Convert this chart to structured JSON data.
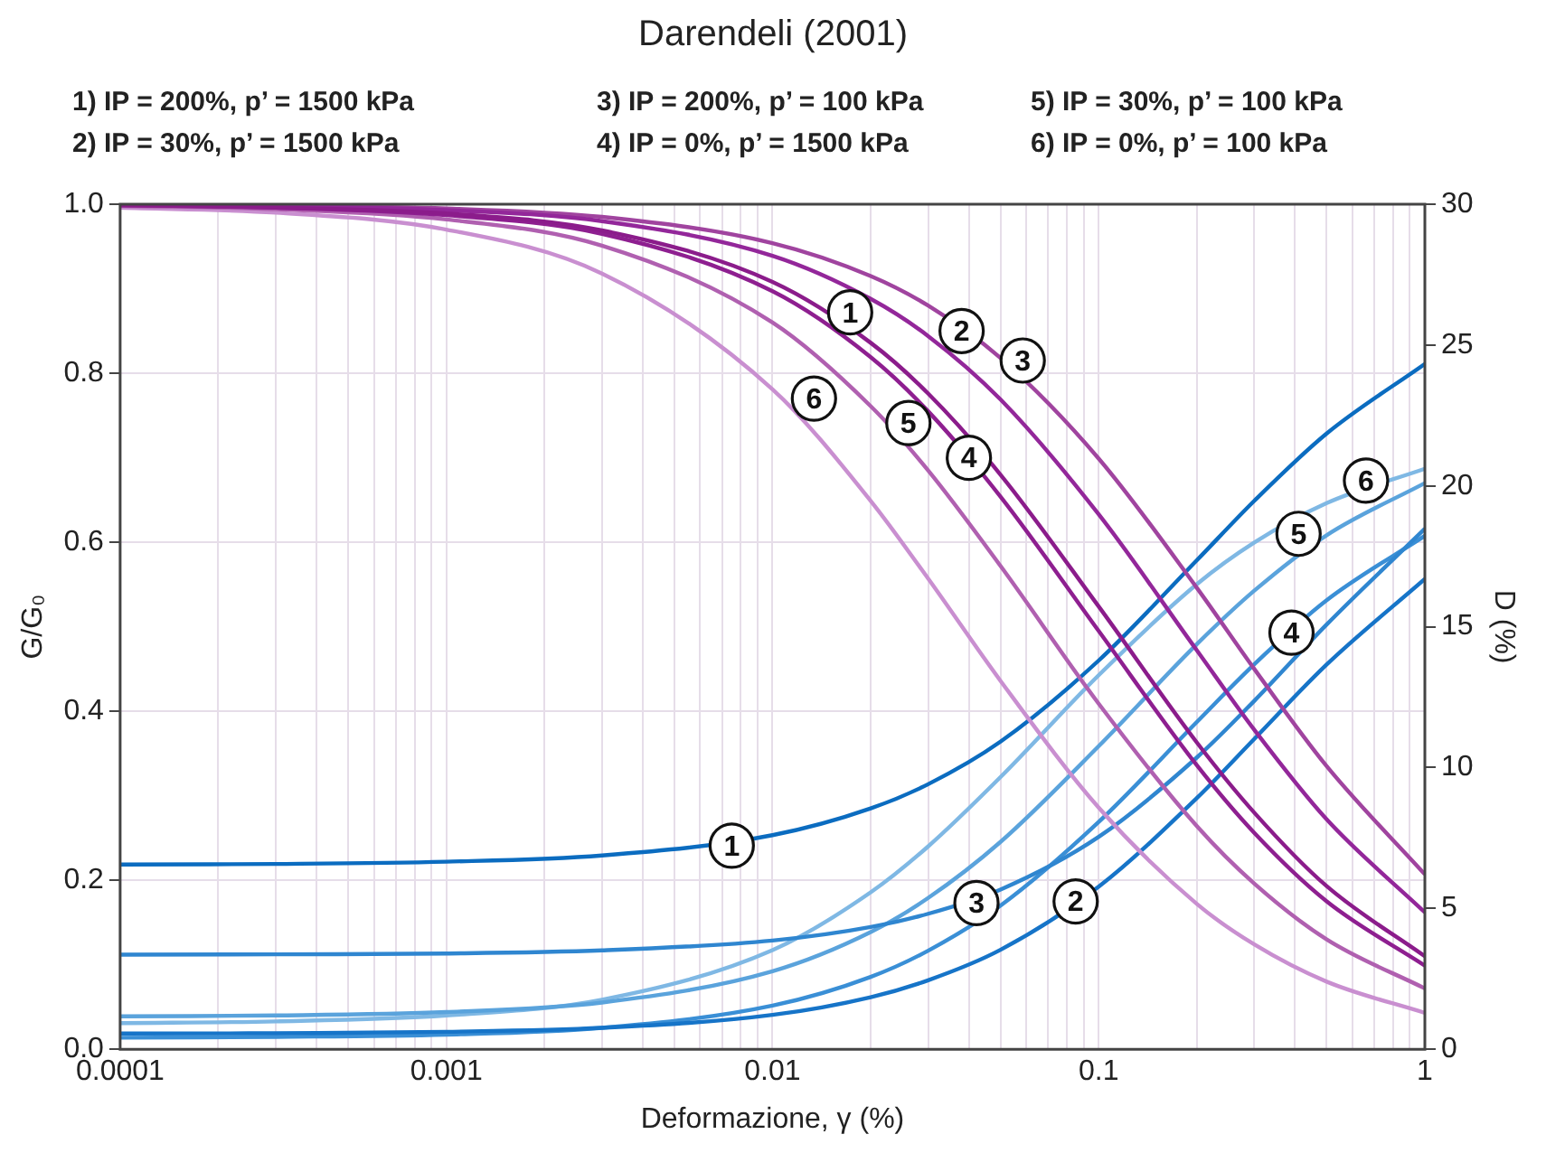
{
  "chart_data": {
    "type": "line",
    "title": "Darendeli (2001)",
    "xlabel": "Deformazione, γ (%)",
    "ylabel": "G/G₀",
    "y2label": "D (%)",
    "annotations": [
      "1) IP = 200%, p’ = 1500 kPa",
      "3) IP = 200%, p’ = 100 kPa",
      "5) IP = 30%, p’ = 100 kPa",
      "2) IP = 30%, p’ = 1500 kPa",
      "4) IP = 0%, p’ = 1500 kPa",
      "6) IP = 0%, p’ = 100 kPa",
      {
        "text": "1",
        "x": 0.0173,
        "y": 0.872
      },
      {
        "text": "2",
        "x": 0.038,
        "y": 0.85
      },
      {
        "text": "3",
        "x": 0.0585,
        "y": 0.815
      },
      {
        "text": "4",
        "x": 0.04,
        "y": 0.7
      },
      {
        "text": "5",
        "x": 0.0261,
        "y": 0.741
      },
      {
        "text": "6",
        "x": 0.0134,
        "y": 0.77
      },
      {
        "text": "1",
        "x": 0.0075,
        "y": 0.241
      },
      {
        "text": "3",
        "x": 0.0422,
        "y": 0.173
      },
      {
        "text": "2",
        "x": 0.085,
        "y": 0.175
      },
      {
        "text": "4",
        "x": 0.39,
        "y": 0.493
      },
      {
        "text": "5",
        "x": 0.41,
        "y": 0.61
      },
      {
        "text": "6",
        "x": 0.66,
        "y": 0.673
      }
    ],
    "x": [
      0.0001,
      0.0003,
      0.001,
      0.003,
      0.01,
      0.02,
      0.03,
      0.05,
      0.1,
      0.2,
      0.3,
      0.5,
      1
    ],
    "series": [
      {
        "color": "#8b1c8b",
        "values": [
          0.999,
          0.996,
          0.989,
          0.969,
          0.908,
          0.836,
          0.776,
          0.68,
          0.524,
          0.363,
          0.28,
          0.193,
          0.11
        ]
      },
      {
        "color": "#93279a",
        "values": [
          0.999,
          0.998,
          0.993,
          0.98,
          0.939,
          0.888,
          0.844,
          0.769,
          0.633,
          0.472,
          0.378,
          0.272,
          0.162
        ]
      },
      {
        "color": "#a0449f",
        "values": [
          0.999,
          0.998,
          0.995,
          0.985,
          0.954,
          0.915,
          0.88,
          0.818,
          0.699,
          0.546,
          0.45,
          0.335,
          0.207
        ]
      },
      {
        "color": "#8e1f90",
        "values": [
          0.999,
          0.996,
          0.987,
          0.965,
          0.897,
          0.819,
          0.755,
          0.654,
          0.495,
          0.336,
          0.256,
          0.175,
          0.099
        ]
      },
      {
        "color": "#b060b0",
        "values": [
          0.998,
          0.994,
          0.982,
          0.951,
          0.86,
          0.761,
          0.685,
          0.572,
          0.409,
          0.264,
          0.196,
          0.13,
          0.072
        ]
      },
      {
        "color": "#c98fd0",
        "values": [
          0.996,
          0.99,
          0.97,
          0.918,
          0.781,
          0.649,
          0.557,
          0.436,
          0.286,
          0.172,
          0.124,
          0.08,
          0.043
        ]
      },
      {
        "color": "#0b6cc0",
        "axis": "y2",
        "values": [
          6.56,
          6.58,
          6.66,
          6.88,
          7.6,
          8.55,
          9.41,
          10.92,
          13.8,
          17.36,
          19.47,
          21.86,
          24.33
        ]
      },
      {
        "color": "#1674c8",
        "axis": "y2",
        "values": [
          0.56,
          0.57,
          0.62,
          0.76,
          1.22,
          1.85,
          2.45,
          3.53,
          5.77,
          8.92,
          11.02,
          13.66,
          16.7
        ]
      },
      {
        "color": "#2f86d0",
        "axis": "y2",
        "values": [
          3.36,
          3.37,
          3.4,
          3.51,
          3.86,
          4.34,
          4.81,
          5.67,
          7.54,
          10.36,
          12.37,
          15.08,
          18.48
        ]
      },
      {
        "color": "#3a8fd6",
        "axis": "y2",
        "values": [
          0.41,
          0.44,
          0.52,
          0.76,
          1.55,
          2.57,
          3.5,
          5.1,
          8.07,
          11.62,
          13.67,
          15.94,
          18.23
        ]
      },
      {
        "color": "#5aa3dc",
        "axis": "y2",
        "values": [
          1.17,
          1.2,
          1.32,
          1.66,
          2.77,
          4.16,
          5.37,
          7.36,
          10.76,
          14.38,
          16.28,
          18.25,
          20.1
        ]
      },
      {
        "color": "#7fb8e4",
        "axis": "y2",
        "values": [
          0.93,
          0.99,
          1.2,
          1.76,
          3.52,
          5.57,
          7.2,
          9.66,
          13.28,
          16.51,
          17.99,
          19.39,
          20.61
        ]
      }
    ],
    "log": "x",
    "xlim": [
      0.0001,
      1
    ],
    "xticks": [
      0.0001,
      {
        "value": 0.0002,
        "label": null
      },
      {
        "value": 0.0003,
        "label": null
      },
      {
        "value": 0.0004,
        "label": null
      },
      {
        "value": 0.0005,
        "label": null
      },
      {
        "value": 0.0006,
        "label": null
      },
      {
        "value": 0.0007,
        "label": null
      },
      {
        "value": 0.0008,
        "label": null
      },
      {
        "value": 0.0009,
        "label": null
      },
      0.001,
      {
        "value": 0.002,
        "label": null
      },
      {
        "value": 0.003,
        "label": null
      },
      {
        "value": 0.004,
        "label": null
      },
      {
        "value": 0.005,
        "label": null
      },
      {
        "value": 0.006,
        "label": null
      },
      {
        "value": 0.007,
        "label": null
      },
      {
        "value": 0.008,
        "label": null
      },
      {
        "value": 0.009,
        "label": null
      },
      0.01,
      {
        "value": 0.02,
        "label": null
      },
      {
        "value": 0.03,
        "label": null
      },
      {
        "value": 0.04,
        "label": null
      },
      {
        "value": 0.05,
        "label": null
      },
      {
        "value": 0.06,
        "label": null
      },
      {
        "value": 0.07,
        "label": null
      },
      {
        "value": 0.08,
        "label": null
      },
      {
        "value": 0.09,
        "label": null
      },
      0.1,
      {
        "value": 0.2,
        "label": null
      },
      {
        "value": 0.3,
        "label": null
      },
      {
        "value": 0.4,
        "label": null
      },
      {
        "value": 0.5,
        "label": null
      },
      {
        "value": 0.6,
        "label": null
      },
      {
        "value": 0.7,
        "label": null
      },
      {
        "value": 0.8,
        "label": null
      },
      {
        "value": 0.9,
        "label": null
      },
      1
    ],
    "ylim": [
      0,
      1
    ],
    "yticks": [
      {
        "value": 0,
        "label": "0.0"
      },
      {
        "value": 0.2,
        "label": "0.2"
      },
      {
        "value": 0.4,
        "label": "0.4"
      },
      {
        "value": 0.6,
        "label": "0.6"
      },
      {
        "value": 0.8,
        "label": "0.8"
      },
      {
        "value": 1,
        "label": "1.0"
      }
    ],
    "y2lim": [
      0,
      30
    ],
    "y2ticks": [
      0,
      5,
      10,
      15,
      20,
      25,
      30
    ],
    "grid": true,
    "legend": false,
    "marker": "none",
    "line_style": "solid"
  }
}
